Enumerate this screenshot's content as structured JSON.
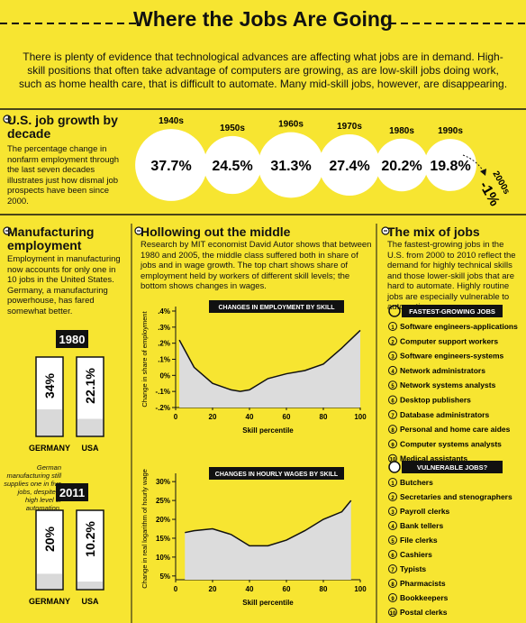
{
  "header": {
    "title": "Where the Jobs Are Going",
    "intro": "There is plenty of evidence that technological advances are affecting what jobs are in demand. High-skill positions that often take advantage of computers are growing, as are low-skill jobs doing work, such as home health care, that is difficult to automate. Many mid-skill jobs, however, are disappearing."
  },
  "decades": {
    "title": "U.S. job growth by decade",
    "text": "The percentage change in nonfarm employment through the last seven decades illustrates just how dismal job prospects have been since 2000."
  },
  "manufacturing": {
    "title": "Manufacturing employment",
    "text": "Employment in manufacturing now accounts for only one in 10 jobs in the United States. Germany, a manufacturing powerhouse, has fared somewhat better.",
    "note": "German manufacturing still supplies one in five jobs, despite a high level of automation."
  },
  "hollowing": {
    "title": "Hollowing out the middle",
    "text": "Research by MIT economist David Autor shows that between 1980 and 2005, the middle class suffered both in share of jobs and in wage growth. The top chart shows share of employment held by workers of different skill levels; the bottom shows changes in wages."
  },
  "mix": {
    "title": "The mix of jobs",
    "text": "The fastest-growing jobs in the U.S. from 2000 to 2010 reflect the demand for highly technical skills and those lower-skill jobs that are hard to automate. Highly routine jobs are especially vulnerable to automation.",
    "fastest": {
      "heading": "FASTEST-GROWING JOBS",
      "items": [
        {
          "rank": 1,
          "label": "Software engineers-applications"
        },
        {
          "rank": 2,
          "label": "Computer support workers"
        },
        {
          "rank": 3,
          "label": "Software engineers-systems"
        },
        {
          "rank": 4,
          "label": "Network administrators"
        },
        {
          "rank": 5,
          "label": "Network systems analysts"
        },
        {
          "rank": 6,
          "label": "Desktop publishers"
        },
        {
          "rank": 7,
          "label": "Database administrators"
        },
        {
          "rank": 8,
          "label": "Personal and home care aides"
        },
        {
          "rank": 9,
          "label": "Computer systems analysts"
        },
        {
          "rank": 10,
          "label": "Medical assistants"
        }
      ]
    },
    "vulnerable": {
      "heading": "VULNERABLE JOBS?",
      "items": [
        {
          "rank": 1,
          "label": "Butchers"
        },
        {
          "rank": 2,
          "label": "Secretaries and stenographers"
        },
        {
          "rank": 3,
          "label": "Payroll clerks"
        },
        {
          "rank": 4,
          "label": "Bank tellers"
        },
        {
          "rank": 5,
          "label": "File clerks"
        },
        {
          "rank": 6,
          "label": "Cashiers"
        },
        {
          "rank": 7,
          "label": "Typists"
        },
        {
          "rank": 8,
          "label": "Pharmacists"
        },
        {
          "rank": 9,
          "label": "Bookkeepers"
        },
        {
          "rank": 10,
          "label": "Postal clerks"
        }
      ]
    }
  },
  "chart_data": [
    {
      "type": "bubble",
      "categories": [
        "1940s",
        "1950s",
        "1960s",
        "1970s",
        "1980s",
        "1990s",
        "2000s"
      ],
      "values": [
        37.7,
        24.5,
        31.3,
        27.4,
        20.2,
        19.8,
        -1
      ],
      "value_labels": [
        "37.7%",
        "24.5%",
        "31.3%",
        "27.4%",
        "20.2%",
        "19.8%",
        "-1%"
      ],
      "color": "#ffffff"
    },
    {
      "type": "bar",
      "title": "1980",
      "categories": [
        "GERMANY",
        "USA"
      ],
      "values": [
        34,
        22.1
      ],
      "value_labels": [
        "34%",
        "22.1%"
      ],
      "ylim": [
        0,
        100
      ],
      "color": "#d9d9d9"
    },
    {
      "type": "bar",
      "title": "2011",
      "categories": [
        "GERMANY",
        "USA"
      ],
      "values": [
        20,
        10.2
      ],
      "value_labels": [
        "20%",
        "10.2%"
      ],
      "ylim": [
        0,
        100
      ],
      "color": "#d9d9d9"
    },
    {
      "type": "area",
      "title": "CHANGES IN EMPLOYMENT BY SKILL",
      "x_label": "Skill percentile",
      "y_label": "Change in share of employment",
      "x": [
        2,
        10,
        20,
        30,
        35,
        40,
        50,
        60,
        70,
        80,
        90,
        100
      ],
      "values": [
        0.22,
        0.05,
        -0.05,
        -0.09,
        -0.1,
        -0.09,
        -0.02,
        0.01,
        0.03,
        0.07,
        0.17,
        0.28
      ],
      "xlim": [
        0,
        100
      ],
      "ylim": [
        -0.2,
        0.4
      ],
      "xticks": [
        0,
        20,
        40,
        60,
        80,
        100
      ],
      "yticks": [
        {
          "value": 0.4,
          "label": ".4%"
        },
        {
          "value": 0.3,
          "label": ".3%"
        },
        {
          "value": 0.2,
          "label": ".2%"
        },
        {
          "value": 0.1,
          "label": ".1%"
        },
        {
          "value": 0,
          "label": "0%"
        },
        {
          "value": -0.1,
          "label": "-.1%"
        },
        {
          "value": -0.2,
          "label": "-.2%"
        }
      ],
      "color": "#dcdcdc"
    },
    {
      "type": "area",
      "title": "CHANGES IN HOURLY WAGES BY SKILL",
      "x_label": "Skill percentile",
      "y_label": "Change in real logarithm of hourly wage",
      "x": [
        5,
        10,
        20,
        30,
        40,
        50,
        60,
        70,
        80,
        90,
        95
      ],
      "values": [
        16.5,
        17,
        17.5,
        16,
        13,
        13,
        14.5,
        17,
        20,
        22,
        25
      ],
      "xlim": [
        0,
        100
      ],
      "ylim": [
        4,
        31
      ],
      "xticks": [
        0,
        20,
        40,
        60,
        80,
        100
      ],
      "yticks": [
        {
          "value": 30,
          "label": "30%"
        },
        {
          "value": 25,
          "label": "25%"
        },
        {
          "value": 20,
          "label": "20%"
        },
        {
          "value": 15,
          "label": "15%"
        },
        {
          "value": 10,
          "label": "10%"
        },
        {
          "value": 5,
          "label": "5%"
        }
      ],
      "color": "#dcdcdc"
    }
  ]
}
